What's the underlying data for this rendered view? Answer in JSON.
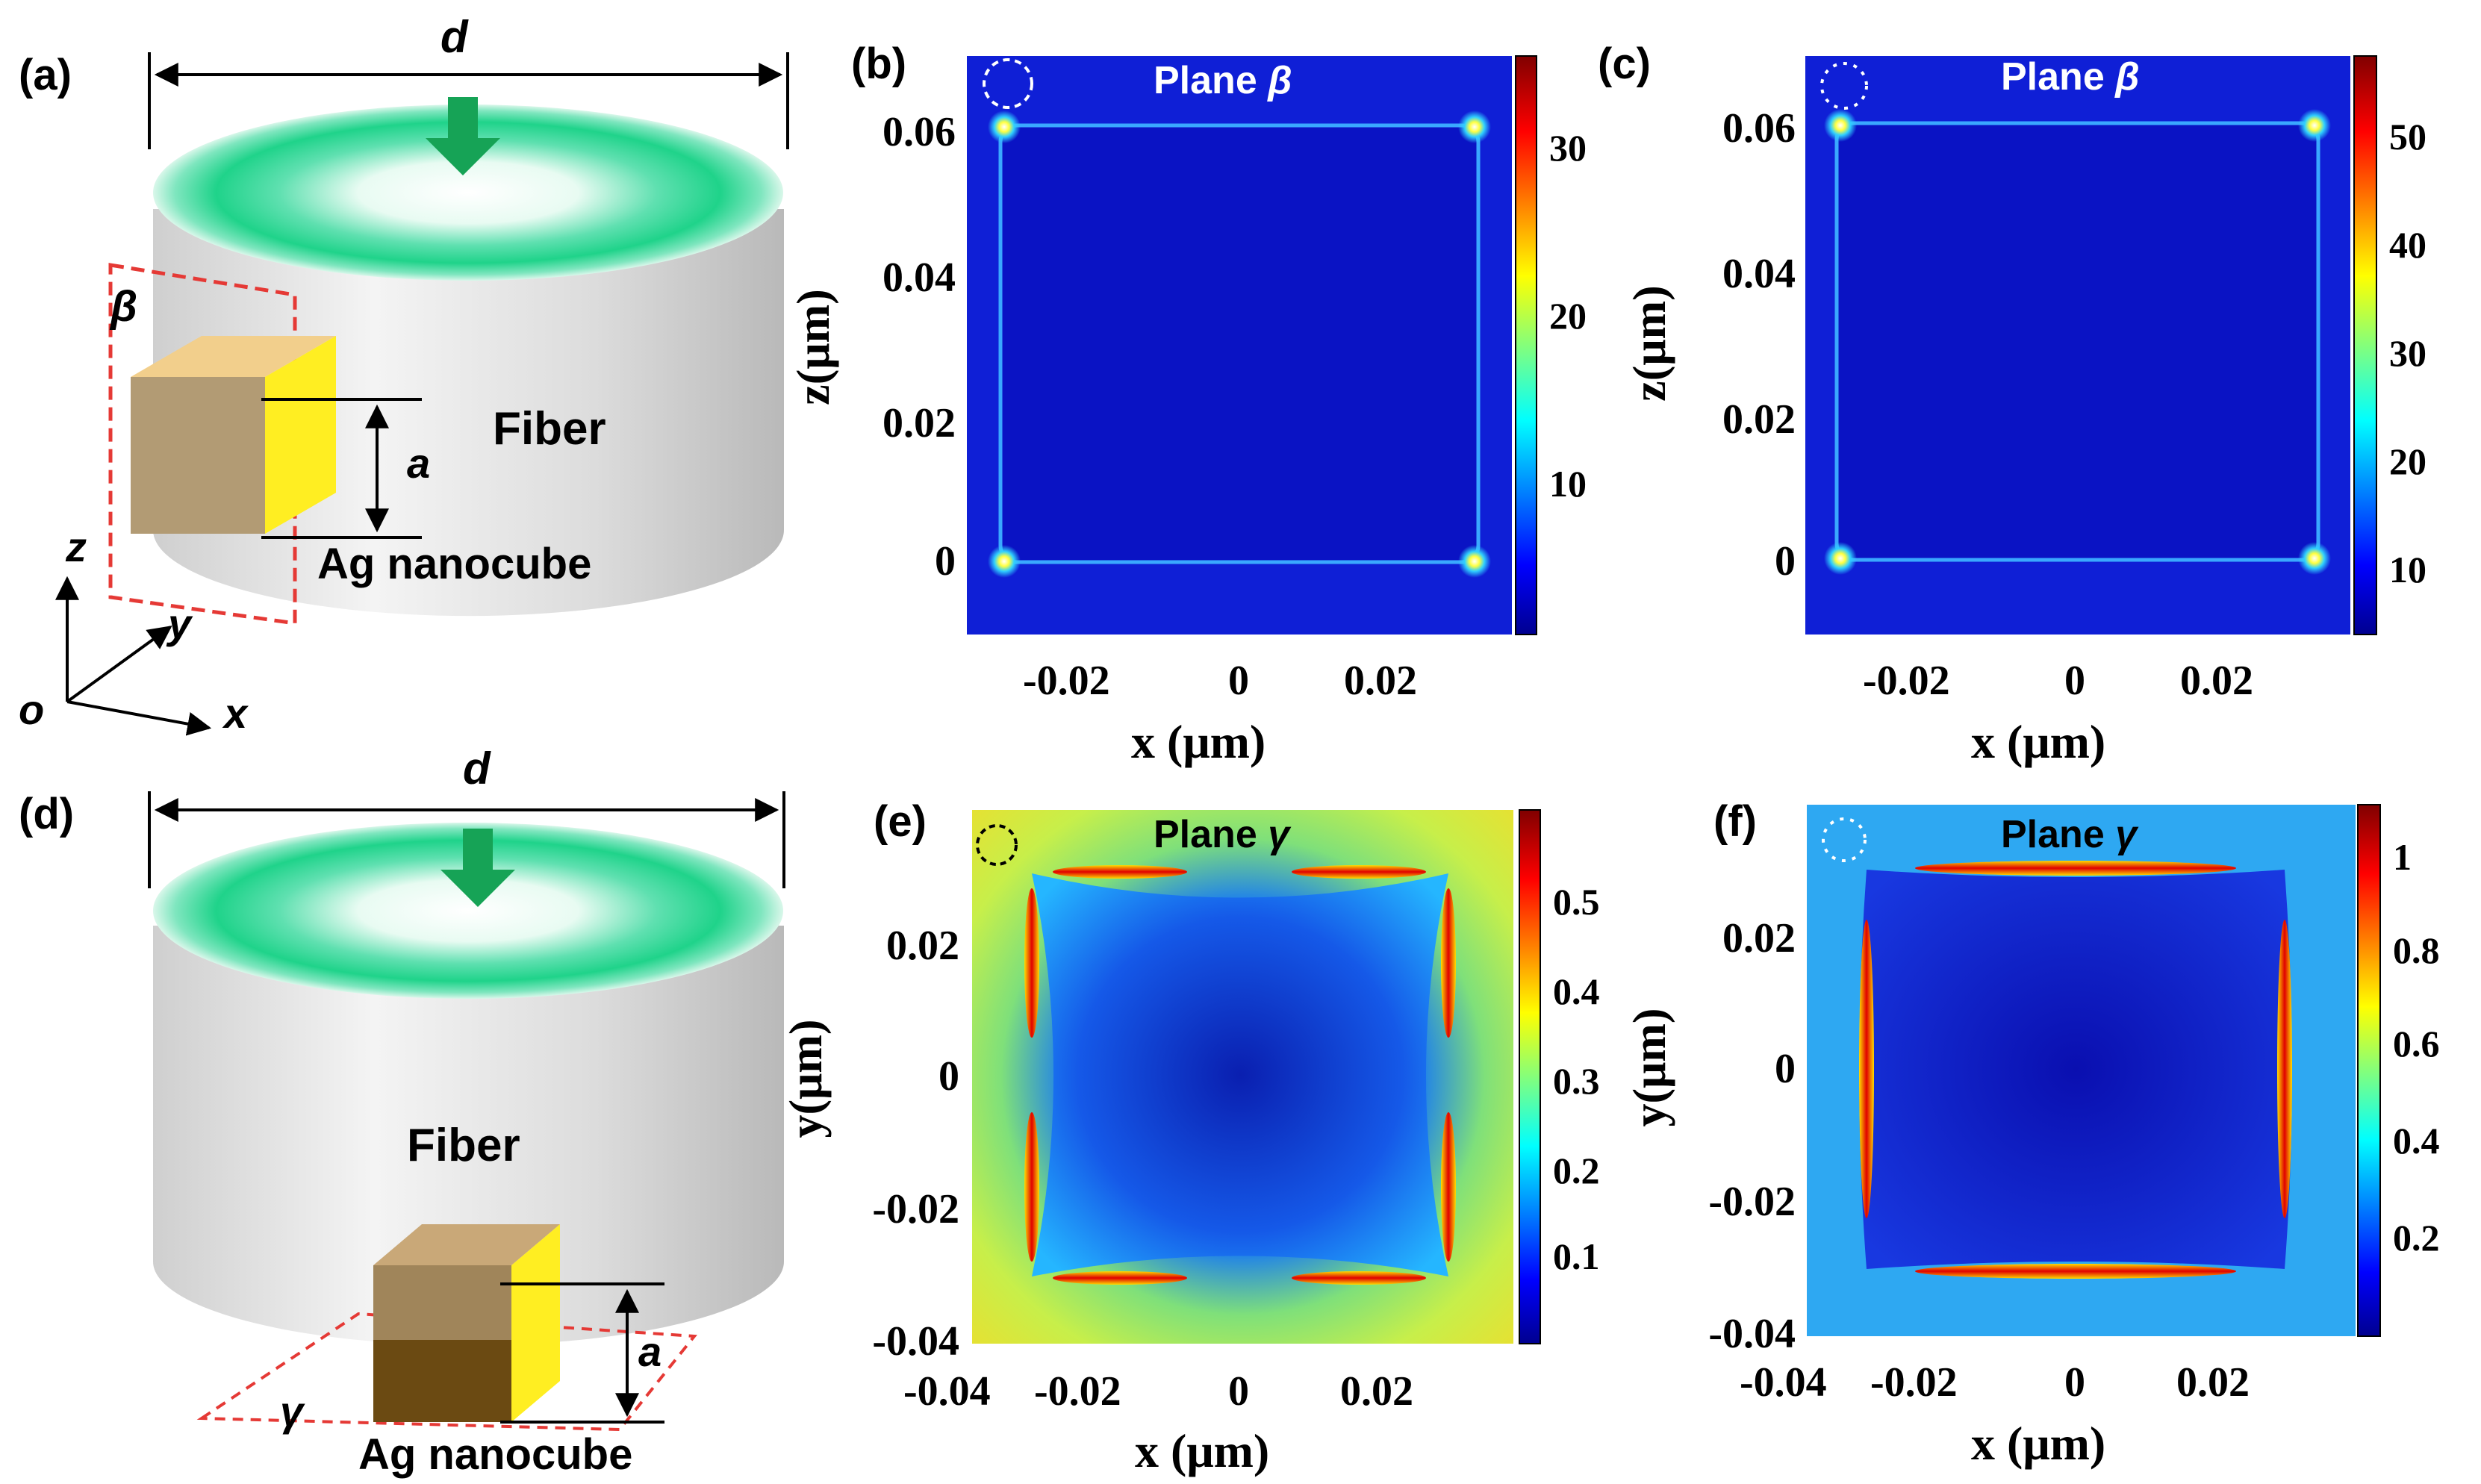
{
  "figure": {
    "panel_labels": {
      "a": "(a)",
      "b": "(b)",
      "c": "(c)",
      "d": "(d)",
      "e": "(e)",
      "f": "(f)"
    },
    "schematic": {
      "dimension_d": "d",
      "dimension_a": "a",
      "fiber_label": "Fiber",
      "cube_label": "Ag nanocube",
      "plane_beta": "β",
      "plane_gamma": "γ",
      "axis_x": "x",
      "axis_y": "y",
      "axis_z": "z",
      "axis_origin": "o",
      "colors": {
        "fiber_ring": "#1fd38a",
        "arrow": "#16a356",
        "plane_dash": "#e53935",
        "cube_front": "#b29b74",
        "cube_side": "#ffee22",
        "cube_top": "#f2cf8c"
      }
    },
    "maps": {
      "b": {
        "title_prefix": "Plane",
        "plane_symbol": "β",
        "xlabel": "x (μm)",
        "ylabel": "z(μm)",
        "xticks": [
          "-0.02",
          "0",
          "0.02"
        ],
        "yticks": [
          "0.06",
          "0.04",
          "0.02",
          "0"
        ],
        "colorbar_ticks": [
          "30",
          "20",
          "10"
        ]
      },
      "c": {
        "title_prefix": "Plane",
        "plane_symbol": "β",
        "xlabel": "x (μm)",
        "ylabel": "z(μm)",
        "xticks": [
          "-0.02",
          "0",
          "0.02"
        ],
        "yticks": [
          "0.06",
          "0.04",
          "0.02",
          "0"
        ],
        "colorbar_ticks": [
          "50",
          "40",
          "30",
          "20",
          "10"
        ]
      },
      "e": {
        "title_prefix": "Plane",
        "plane_symbol": "γ",
        "xlabel": "x (μm)",
        "ylabel": "y(μm)",
        "xticks": [
          "-0.04",
          "-0.02",
          "0",
          "0.02"
        ],
        "yticks": [
          "0.02",
          "0",
          "-0.02",
          "-0.04"
        ],
        "colorbar_ticks": [
          "0.5",
          "0.4",
          "0.3",
          "0.2",
          "0.1"
        ]
      },
      "f": {
        "title_prefix": "Plane",
        "plane_symbol": "γ",
        "xlabel": "x (μm)",
        "ylabel": "y(μm)",
        "xticks": [
          "-0.04",
          "-0.02",
          "0",
          "0.02"
        ],
        "yticks": [
          "0.02",
          "0",
          "-0.02",
          "-0.04"
        ],
        "colorbar_ticks": [
          "1",
          "0.8",
          "0.6",
          "0.4",
          "0.2"
        ]
      }
    },
    "colormap": [
      "#00008f",
      "#0000ff",
      "#00ffff",
      "#ffff00",
      "#ff0000",
      "#800000"
    ]
  }
}
